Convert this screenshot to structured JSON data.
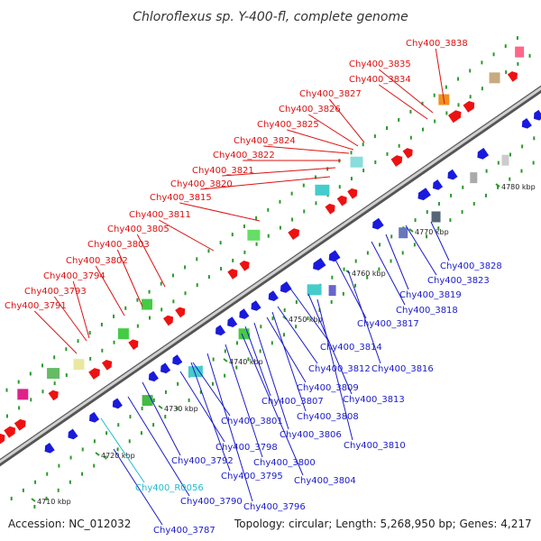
{
  "title": "Chloroflexus sp. Y-400-fl, complete genome",
  "footer": {
    "accession": "Accession: NC_012032",
    "topology": "Topology: circular; Length: 5,268,950 bp; Genes: 4,217"
  },
  "colors": {
    "forward_label": "#dd1111",
    "reverse_label": "#1a1acc",
    "rna_label": "#22bbcc",
    "backbone": "#888888"
  },
  "ticks": [
    {
      "label": "4710 kbp"
    },
    {
      "label": "4720 kbp"
    },
    {
      "label": "4730 kbp"
    },
    {
      "label": "4740 kbp"
    },
    {
      "label": "4750 kbp"
    },
    {
      "label": "4760 kbp"
    },
    {
      "label": "4770 kbp"
    },
    {
      "label": "4780 kbp"
    }
  ],
  "forward_labels": [
    "Chy400_3838",
    "Chy400_3835",
    "Chy400_3834",
    "Chy400_3827",
    "Chy400_3826",
    "Chy400_3825",
    "Chy400_3824",
    "Chy400_3822",
    "Chy400_3821",
    "Chy400_3820",
    "Chy400_3815",
    "Chy400_3811",
    "Chy400_3805",
    "Chy400_3803",
    "Chy400_3802",
    "Chy400_3794",
    "Chy400_3793",
    "Chy400_3791"
  ],
  "reverse_labels": [
    "Chy400_3828",
    "Chy400_3823",
    "Chy400_3819",
    "Chy400_3818",
    "Chy400_3817",
    "Chy400_3814",
    "Chy400_3816",
    "Chy400_3812",
    "Chy400_3809",
    "Chy400_3813",
    "Chy400_3807",
    "Chy400_3808",
    "Chy400_3801",
    "Chy400_3806",
    "Chy400_3810",
    "Chy400_3798",
    "Chy400_3800",
    "Chy400_3792",
    "Chy400_3795",
    "Chy400_3804",
    "Chy400_R0056",
    "Chy400_3790",
    "Chy400_3796",
    "Chy400_3787"
  ]
}
